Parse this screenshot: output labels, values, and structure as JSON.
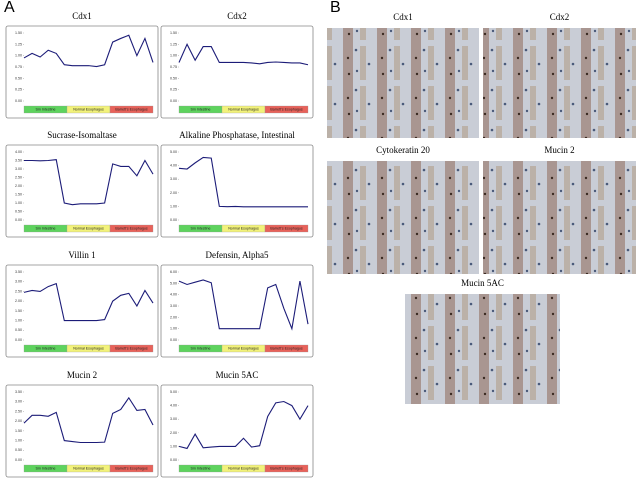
{
  "panel_labels": [
    "A",
    "B"
  ],
  "chart_data": [
    {
      "type": "line",
      "title": "Cdx1",
      "color": "#1c1c78",
      "groups": [
        "Sm Intestine",
        "Normal Esophagus",
        "Barrett's Esophagus"
      ],
      "group_colors": [
        "#5ed35e",
        "#f2f27a",
        "#e8625a"
      ],
      "categories": [
        null,
        null,
        null,
        null,
        null,
        null,
        null,
        null,
        null,
        null,
        null,
        null,
        null,
        null,
        null,
        null,
        null
      ],
      "values": [
        0.95,
        1.05,
        0.97,
        1.12,
        1.05,
        0.8,
        0.78,
        0.78,
        0.78,
        0.76,
        0.8,
        1.3,
        1.38,
        1.45,
        1.0,
        1.38,
        0.85
      ],
      "ylim": [
        0,
        1.5
      ],
      "yticks": [
        {
          "value": 0,
          "label": "0.00"
        },
        {
          "value": 0.25,
          "label": "0.25"
        },
        {
          "value": 0.5,
          "label": "0.50"
        },
        {
          "value": 0.75,
          "label": "0.75"
        },
        {
          "value": 1,
          "label": "1.00"
        },
        {
          "value": 1.25,
          "label": "1.25"
        },
        {
          "value": 1.5,
          "label": "1.50"
        }
      ]
    },
    {
      "type": "line",
      "title": "Cdx2",
      "color": "#1c1c78",
      "groups": [
        "Sm Intestine",
        "Normal Esophagus",
        "Barrett's Esophagus"
      ],
      "group_colors": [
        "#5ed35e",
        "#f2f27a",
        "#e8625a"
      ],
      "categories": [
        null,
        null,
        null,
        null,
        null,
        null,
        null,
        null,
        null,
        null,
        null,
        null,
        null,
        null,
        null,
        null,
        null
      ],
      "values": [
        0.85,
        1.25,
        0.9,
        1.2,
        1.2,
        0.85,
        0.85,
        0.85,
        0.85,
        0.84,
        0.82,
        0.85,
        0.86,
        0.85,
        0.84,
        0.84,
        0.8
      ],
      "ylim": [
        0,
        1.5
      ],
      "yticks": [
        {
          "value": 0,
          "label": "0.00"
        },
        {
          "value": 0.25,
          "label": "0.25"
        },
        {
          "value": 0.5,
          "label": "0.50"
        },
        {
          "value": 0.75,
          "label": "0.75"
        },
        {
          "value": 1,
          "label": "1.00"
        },
        {
          "value": 1.25,
          "label": "1.25"
        },
        {
          "value": 1.5,
          "label": "1.50"
        }
      ]
    },
    {
      "type": "line",
      "title": "Sucrase-Isomaltase",
      "color": "#1c1c78",
      "groups": [
        "Sm Intestine",
        "Normal Esophagus",
        "Barrett's Esophagus"
      ],
      "group_colors": [
        "#5ed35e",
        "#f2f27a",
        "#e8625a"
      ],
      "categories": [
        null,
        null,
        null,
        null,
        null,
        null,
        null,
        null,
        null,
        null,
        null,
        null,
        null,
        null,
        null,
        null,
        null
      ],
      "values": [
        3.5,
        3.5,
        3.48,
        3.5,
        3.55,
        1.0,
        0.9,
        0.95,
        0.95,
        0.95,
        1.0,
        3.3,
        3.15,
        3.15,
        2.6,
        3.5,
        2.7
      ],
      "ylim": [
        0,
        4
      ],
      "yticks": [
        {
          "value": 0,
          "label": "0.00"
        },
        {
          "value": 0.5,
          "label": "0.50"
        },
        {
          "value": 1,
          "label": "1.00"
        },
        {
          "value": 1.5,
          "label": "1.50"
        },
        {
          "value": 2,
          "label": "2.00"
        },
        {
          "value": 2.5,
          "label": "2.50"
        },
        {
          "value": 3,
          "label": "3.00"
        },
        {
          "value": 3.5,
          "label": "3.50"
        },
        {
          "value": 4,
          "label": "4.00"
        }
      ]
    },
    {
      "type": "line",
      "title": "Alkaline Phosphatase, Intestinal",
      "color": "#1c1c78",
      "groups": [
        "Sm Intestine",
        "Normal Esophagus",
        "Barrett's Esophagus"
      ],
      "group_colors": [
        "#5ed35e",
        "#f2f27a",
        "#e8625a"
      ],
      "categories": [
        null,
        null,
        null,
        null,
        null,
        null,
        null,
        null,
        null,
        null,
        null,
        null,
        null,
        null,
        null,
        null,
        null
      ],
      "values": [
        3.8,
        3.75,
        4.2,
        4.6,
        4.55,
        1.0,
        0.98,
        1.0,
        0.97,
        0.97,
        0.97,
        0.97,
        0.97,
        0.97,
        0.97,
        0.97,
        0.97
      ],
      "ylim": [
        0,
        5
      ],
      "yticks": [
        {
          "value": 0,
          "label": "0.00"
        },
        {
          "value": 1,
          "label": "1.00"
        },
        {
          "value": 2,
          "label": "2.00"
        },
        {
          "value": 3,
          "label": "3.00"
        },
        {
          "value": 4,
          "label": "4.00"
        },
        {
          "value": 5,
          "label": "5.00"
        }
      ]
    },
    {
      "type": "line",
      "title": "Villin 1",
      "color": "#1c1c78",
      "groups": [
        "Sm Intestine",
        "Normal Esophagus",
        "Barrett's Esophagus"
      ],
      "group_colors": [
        "#5ed35e",
        "#f2f27a",
        "#e8625a"
      ],
      "categories": [
        null,
        null,
        null,
        null,
        null,
        null,
        null,
        null,
        null,
        null,
        null,
        null,
        null,
        null,
        null,
        null,
        null
      ],
      "values": [
        2.45,
        2.55,
        2.5,
        2.75,
        2.9,
        1.0,
        1.0,
        1.0,
        1.0,
        1.0,
        1.05,
        2.0,
        2.3,
        2.4,
        1.75,
        2.55,
        1.9
      ],
      "ylim": [
        0,
        3.5
      ],
      "yticks": [
        {
          "value": 0,
          "label": "0.00"
        },
        {
          "value": 0.5,
          "label": "0.50"
        },
        {
          "value": 1,
          "label": "1.00"
        },
        {
          "value": 1.5,
          "label": "1.50"
        },
        {
          "value": 2,
          "label": "2.00"
        },
        {
          "value": 2.5,
          "label": "2.50"
        },
        {
          "value": 3,
          "label": "3.00"
        },
        {
          "value": 3.5,
          "label": "3.50"
        }
      ]
    },
    {
      "type": "line",
      "title": "Defensin, Alpha5",
      "color": "#1c1c78",
      "groups": [
        "Sm Intestine",
        "Normal Esophagus",
        "Barrett's Esophagus"
      ],
      "group_colors": [
        "#5ed35e",
        "#f2f27a",
        "#e8625a"
      ],
      "categories": [
        null,
        null,
        null,
        null,
        null,
        null,
        null,
        null,
        null,
        null,
        null,
        null,
        null,
        null,
        null,
        null,
        null
      ],
      "values": [
        5.2,
        4.9,
        5.1,
        5.3,
        5.05,
        1.0,
        1.0,
        1.0,
        1.0,
        1.0,
        1.0,
        4.6,
        4.9,
        2.8,
        1.0,
        5.2,
        1.4
      ],
      "ylim": [
        0,
        6
      ],
      "yticks": [
        {
          "value": 0,
          "label": "0.00"
        },
        {
          "value": 1,
          "label": "1.00"
        },
        {
          "value": 2,
          "label": "2.00"
        },
        {
          "value": 3,
          "label": "3.00"
        },
        {
          "value": 4,
          "label": "4.00"
        },
        {
          "value": 5,
          "label": "5.00"
        },
        {
          "value": 6,
          "label": "6.00"
        }
      ]
    },
    {
      "type": "line",
      "title": "Mucin 2",
      "color": "#1c1c78",
      "groups": [
        "Sm Intestine",
        "Normal Esophagus",
        "Barrett's Esophagus"
      ],
      "group_colors": [
        "#5ed35e",
        "#f2f27a",
        "#e8625a"
      ],
      "categories": [
        null,
        null,
        null,
        null,
        null,
        null,
        null,
        null,
        null,
        null,
        null,
        null,
        null,
        null,
        null,
        null,
        null
      ],
      "values": [
        1.9,
        2.3,
        2.3,
        2.25,
        2.45,
        1.0,
        0.95,
        0.9,
        0.9,
        0.9,
        0.92,
        2.4,
        2.6,
        3.2,
        2.55,
        2.6,
        1.8
      ],
      "ylim": [
        0,
        3.5
      ],
      "yticks": [
        {
          "value": 0,
          "label": "0.00"
        },
        {
          "value": 0.5,
          "label": "0.50"
        },
        {
          "value": 1,
          "label": "1.00"
        },
        {
          "value": 1.5,
          "label": "1.50"
        },
        {
          "value": 2,
          "label": "2.00"
        },
        {
          "value": 2.5,
          "label": "2.50"
        },
        {
          "value": 3,
          "label": "3.00"
        },
        {
          "value": 3.5,
          "label": "3.50"
        }
      ]
    },
    {
      "type": "line",
      "title": "Mucin 5AC",
      "color": "#1c1c78",
      "groups": [
        "Sm Intestine",
        "Normal Esophagus",
        "Barrett's Esophagus"
      ],
      "group_colors": [
        "#5ed35e",
        "#f2f27a",
        "#e8625a"
      ],
      "categories": [
        null,
        null,
        null,
        null,
        null,
        null,
        null,
        null,
        null,
        null,
        null,
        null,
        null,
        null,
        null,
        null,
        null
      ],
      "values": [
        1.0,
        0.85,
        1.9,
        0.9,
        0.95,
        1.0,
        1.0,
        1.0,
        1.6,
        0.95,
        1.05,
        3.2,
        4.2,
        4.3,
        4.0,
        3.0,
        4.0
      ],
      "ylim": [
        0,
        5
      ],
      "yticks": [
        {
          "value": 0,
          "label": "0.00"
        },
        {
          "value": 1,
          "label": "1.00"
        },
        {
          "value": 2,
          "label": "2.00"
        },
        {
          "value": 3,
          "label": "3.00"
        },
        {
          "value": 4,
          "label": "4.00"
        },
        {
          "value": 5,
          "label": "5.00"
        }
      ]
    }
  ],
  "images": [
    {
      "label": "Cdx1"
    },
    {
      "label": "Cdx2"
    },
    {
      "label": "Cytokeratin 20"
    },
    {
      "label": "Mucin 2"
    },
    {
      "label": "Mucin 5AC"
    }
  ]
}
